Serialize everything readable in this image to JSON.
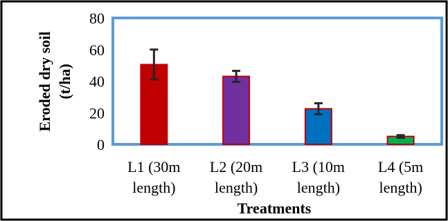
{
  "chart_data": {
    "type": "bar",
    "xlabel": "Treatments",
    "ylabel_lines": [
      "Eroded dry soil",
      "(t/ha)"
    ],
    "ylim": [
      0,
      80
    ],
    "yticks": [
      "0",
      "20",
      "40",
      "60",
      "80"
    ],
    "categories": [
      [
        "L1 (30m",
        "length)"
      ],
      [
        "L2 (20m",
        "length)"
      ],
      [
        "L3 (10m",
        "length)"
      ],
      [
        "L4 (5m",
        "length)"
      ]
    ],
    "values": [
      50.5,
      43,
      22.5,
      5
    ],
    "errors": [
      9.5,
      3.5,
      3.5,
      0.8
    ],
    "bar_colors": [
      "#c00000",
      "#7030a0",
      "#0070c0",
      "#00b050"
    ],
    "bar_edge_color": "#c00000",
    "plot_border_color": "#5b9bd5",
    "error_bar_color": "#262626",
    "grid": false,
    "legend": "none"
  }
}
